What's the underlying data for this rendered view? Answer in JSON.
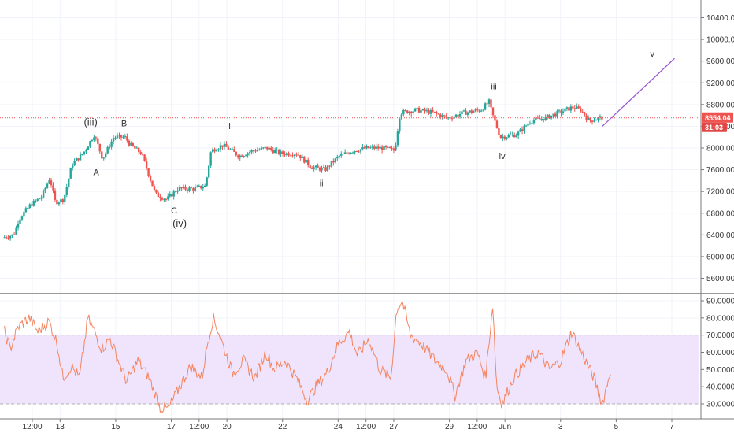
{
  "colors": {
    "up": "#26a69a",
    "down": "#ef5350",
    "rsi_line": "#f4845f",
    "rsi_band": "#f0e4fc",
    "projection": "#9b59d6",
    "grid": "#f0f3fa",
    "price_line": "#ef5350",
    "timer_tag": "#e04848"
  },
  "chart_data": [
    {
      "type": "candlestick",
      "ylim": [
        5350,
        10700
      ],
      "y_ticks": [
        "10400.00",
        "10000.00",
        "9600.00",
        "9200.00",
        "8800.00",
        "8400.00",
        "8000.00",
        "7600.00",
        "7200.00",
        "6800.00",
        "6400.00",
        "6000.00",
        "5600.00"
      ],
      "y_tick_values": [
        10400,
        10000,
        9600,
        9200,
        8800,
        8400,
        8000,
        7600,
        7200,
        6800,
        6400,
        6000,
        5600
      ],
      "x_ticks": [
        "12:00",
        "13",
        "15",
        "17",
        "12:00",
        "20",
        "22",
        "24",
        "12:00",
        "27",
        "29",
        "12:00",
        "Jun",
        "3",
        "5",
        "7"
      ],
      "x_tick_values": [
        0.5,
        1.0,
        2.0,
        3.0,
        3.5,
        4.0,
        5.0,
        6.0,
        6.5,
        7.0,
        8.0,
        8.5,
        9.0,
        10.0,
        11.0,
        12.0
      ],
      "last_price": "8554.04",
      "last_price_value": 8554.04,
      "countdown": "31:03",
      "anchors": [
        [
          0.0,
          6350
        ],
        [
          0.2,
          6400
        ],
        [
          0.3,
          6700
        ],
        [
          0.5,
          6950
        ],
        [
          0.7,
          7100
        ],
        [
          0.85,
          7450
        ],
        [
          0.95,
          7000
        ],
        [
          1.1,
          7050
        ],
        [
          1.25,
          7700
        ],
        [
          1.45,
          7900
        ],
        [
          1.65,
          8250
        ],
        [
          1.8,
          7800
        ],
        [
          2.0,
          8200
        ],
        [
          2.2,
          8200
        ],
        [
          2.3,
          8050
        ],
        [
          2.5,
          7900
        ],
        [
          2.75,
          7150
        ],
        [
          2.95,
          7050
        ],
        [
          3.15,
          7250
        ],
        [
          3.45,
          7250
        ],
        [
          3.65,
          7300
        ],
        [
          3.75,
          7950
        ],
        [
          3.95,
          8050
        ],
        [
          4.05,
          8000
        ],
        [
          4.25,
          7850
        ],
        [
          4.5,
          7950
        ],
        [
          4.75,
          8000
        ],
        [
          5.0,
          7900
        ],
        [
          5.3,
          7900
        ],
        [
          5.55,
          7650
        ],
        [
          5.8,
          7600
        ],
        [
          6.05,
          7850
        ],
        [
          6.3,
          7950
        ],
        [
          6.55,
          8000
        ],
        [
          6.85,
          8000
        ],
        [
          7.05,
          7950
        ],
        [
          7.15,
          8650
        ],
        [
          7.45,
          8700
        ],
        [
          7.75,
          8650
        ],
        [
          8.0,
          8550
        ],
        [
          8.3,
          8650
        ],
        [
          8.6,
          8700
        ],
        [
          8.75,
          8850
        ],
        [
          8.8,
          8650
        ],
        [
          8.95,
          8200
        ],
        [
          9.25,
          8250
        ],
        [
          9.5,
          8500
        ],
        [
          9.75,
          8550
        ],
        [
          10.0,
          8650
        ],
        [
          10.25,
          8750
        ],
        [
          10.4,
          8700
        ],
        [
          10.55,
          8500
        ],
        [
          10.75,
          8560
        ]
      ],
      "elliott_labels": [
        {
          "label": "(iii)",
          "x": 1.55,
          "y": 8410,
          "size": "big"
        },
        {
          "label": "B",
          "x": 2.15,
          "y": 8400
        },
        {
          "label": "A",
          "x": 1.65,
          "y": 7500
        },
        {
          "label": "C",
          "x": 3.05,
          "y": 6800
        },
        {
          "label": "(iv)",
          "x": 3.15,
          "y": 6550,
          "size": "big"
        },
        {
          "label": "i",
          "x": 4.05,
          "y": 8350
        },
        {
          "label": "ii",
          "x": 5.7,
          "y": 7300
        },
        {
          "label": "iii",
          "x": 8.8,
          "y": 9080
        },
        {
          "label": "iv",
          "x": 8.95,
          "y": 7800
        },
        {
          "label": "v",
          "x": 11.65,
          "y": 9680
        }
      ],
      "projection": [
        [
          10.75,
          8400
        ],
        [
          12.05,
          9650
        ]
      ]
    },
    {
      "type": "line",
      "ylim": [
        24,
        92
      ],
      "y_ticks": [
        "90.00000",
        "80.00000",
        "70.00000",
        "60.00000",
        "50.00000",
        "40.00000",
        "30.00000"
      ],
      "y_tick_values": [
        90,
        80,
        70,
        60,
        50,
        40,
        30
      ],
      "band": [
        30,
        70
      ],
      "anchors": [
        [
          0.0,
          72
        ],
        [
          0.1,
          62
        ],
        [
          0.25,
          75
        ],
        [
          0.45,
          80
        ],
        [
          0.6,
          72
        ],
        [
          0.8,
          78
        ],
        [
          0.95,
          65
        ],
        [
          1.05,
          45
        ],
        [
          1.2,
          52
        ],
        [
          1.35,
          45
        ],
        [
          1.5,
          80
        ],
        [
          1.62,
          72
        ],
        [
          1.75,
          62
        ],
        [
          1.9,
          68
        ],
        [
          2.05,
          55
        ],
        [
          2.2,
          43
        ],
        [
          2.4,
          55
        ],
        [
          2.6,
          45
        ],
        [
          2.8,
          28
        ],
        [
          2.95,
          27
        ],
        [
          3.15,
          40
        ],
        [
          3.35,
          52
        ],
        [
          3.55,
          45
        ],
        [
          3.65,
          65
        ],
        [
          3.75,
          80
        ],
        [
          3.85,
          72
        ],
        [
          3.95,
          62
        ],
        [
          4.1,
          48
        ],
        [
          4.3,
          55
        ],
        [
          4.5,
          45
        ],
        [
          4.7,
          60
        ],
        [
          4.85,
          50
        ],
        [
          5.05,
          55
        ],
        [
          5.25,
          45
        ],
        [
          5.45,
          32
        ],
        [
          5.6,
          40
        ],
        [
          5.8,
          48
        ],
        [
          6.0,
          65
        ],
        [
          6.2,
          72
        ],
        [
          6.35,
          58
        ],
        [
          6.55,
          68
        ],
        [
          6.75,
          50
        ],
        [
          6.95,
          45
        ],
        [
          7.05,
          85
        ],
        [
          7.15,
          90
        ],
        [
          7.3,
          70
        ],
        [
          7.5,
          65
        ],
        [
          7.75,
          55
        ],
        [
          7.95,
          50
        ],
        [
          8.1,
          35
        ],
        [
          8.3,
          55
        ],
        [
          8.5,
          60
        ],
        [
          8.65,
          45
        ],
        [
          8.78,
          88
        ],
        [
          8.85,
          40
        ],
        [
          8.95,
          30
        ],
        [
          9.15,
          45
        ],
        [
          9.4,
          55
        ],
        [
          9.6,
          60
        ],
        [
          9.8,
          50
        ],
        [
          10.0,
          55
        ],
        [
          10.2,
          72
        ],
        [
          10.3,
          65
        ],
        [
          10.45,
          55
        ],
        [
          10.6,
          45
        ],
        [
          10.75,
          30
        ],
        [
          10.9,
          50
        ]
      ]
    }
  ]
}
